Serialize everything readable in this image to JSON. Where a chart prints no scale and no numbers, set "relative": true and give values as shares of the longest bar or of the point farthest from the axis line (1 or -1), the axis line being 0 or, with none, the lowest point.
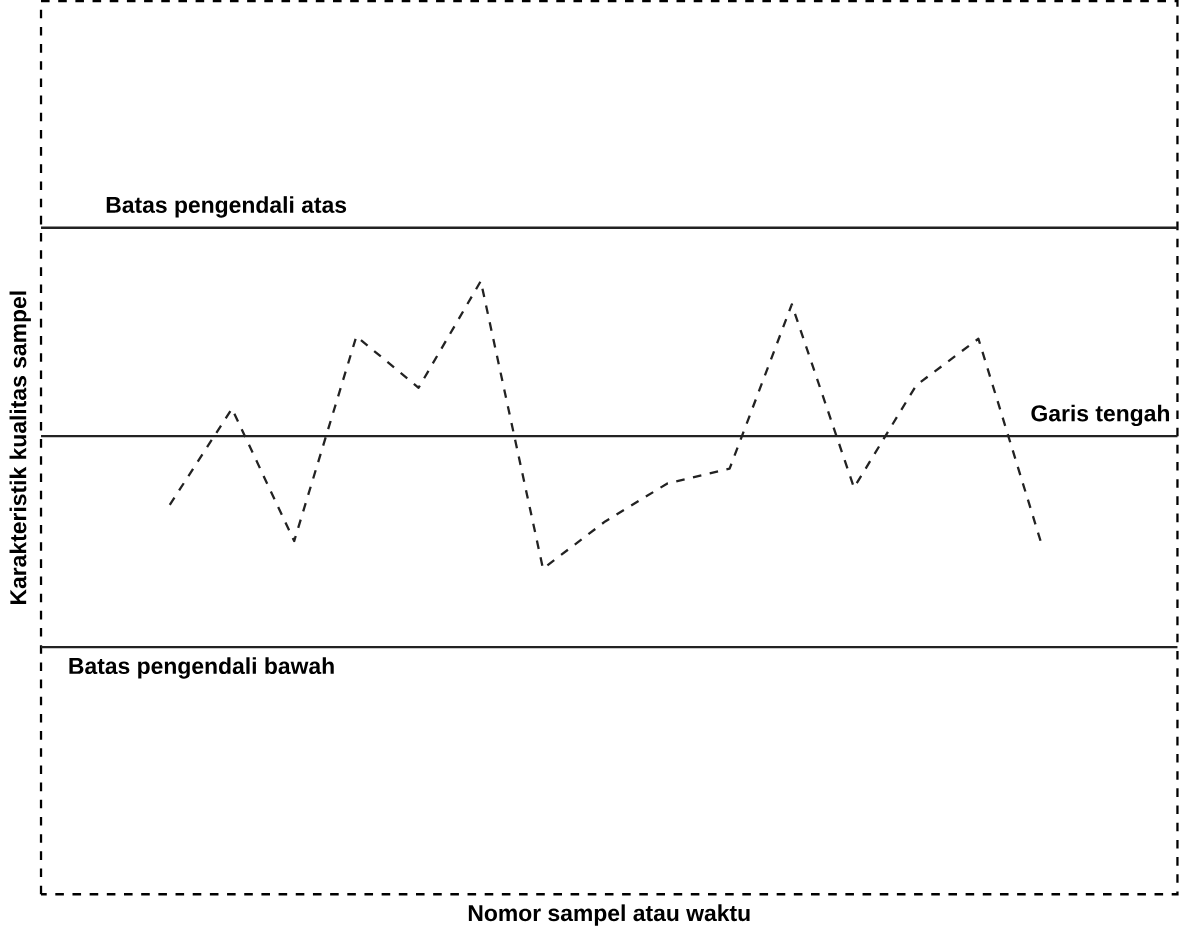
{
  "chart_data": {
    "type": "line",
    "relative": true,
    "xlabel": "Nomor sampel atau waktu",
    "ylabel": "Karakteristik kualitas sampel",
    "categories": [
      null,
      null,
      null,
      null,
      null,
      null,
      null,
      null,
      null,
      null,
      null,
      null,
      null,
      null,
      null
    ],
    "series": [
      {
        "color": "#222222",
        "values": [
          0.635,
          0.792,
          0.576,
          0.91,
          0.826,
          1,
          0.531,
          0.608,
          0.67,
          0.694,
          0.962,
          0.663,
          0.83,
          0.906,
          0.576
        ]
      }
    ],
    "line_style": "dashed",
    "marker": "none",
    "ref_lines": [
      {
        "axis": "y",
        "value": 1.087,
        "label": "Batas pengendali atas",
        "color": "#222222",
        "line_style": "solid"
      },
      {
        "axis": "y",
        "value": 0.747,
        "label": "Garis tengah",
        "color": "#222222",
        "line_style": "solid"
      },
      {
        "axis": "y",
        "value": 0.403,
        "label": "Batas pengendali bawah",
        "color": "#222222",
        "line_style": "solid"
      }
    ]
  }
}
